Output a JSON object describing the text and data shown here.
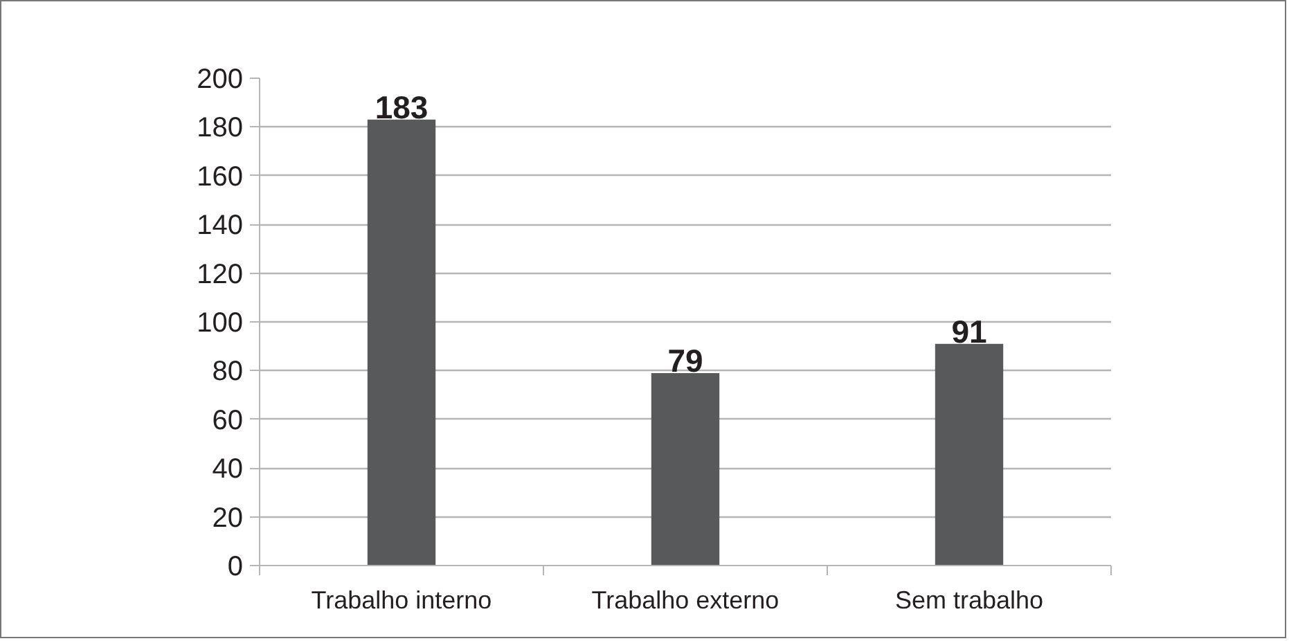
{
  "chart_data": {
    "type": "bar",
    "categories": [
      "Trabalho interno",
      "Trabalho externo",
      "Sem trabalho"
    ],
    "values": [
      183,
      79,
      91
    ],
    "color": "#58595b",
    "ylim": [
      0,
      200
    ],
    "yticks": [
      0,
      20,
      40,
      60,
      80,
      100,
      120,
      140,
      160,
      180,
      200
    ],
    "grid": "y",
    "data_labels": true
  }
}
